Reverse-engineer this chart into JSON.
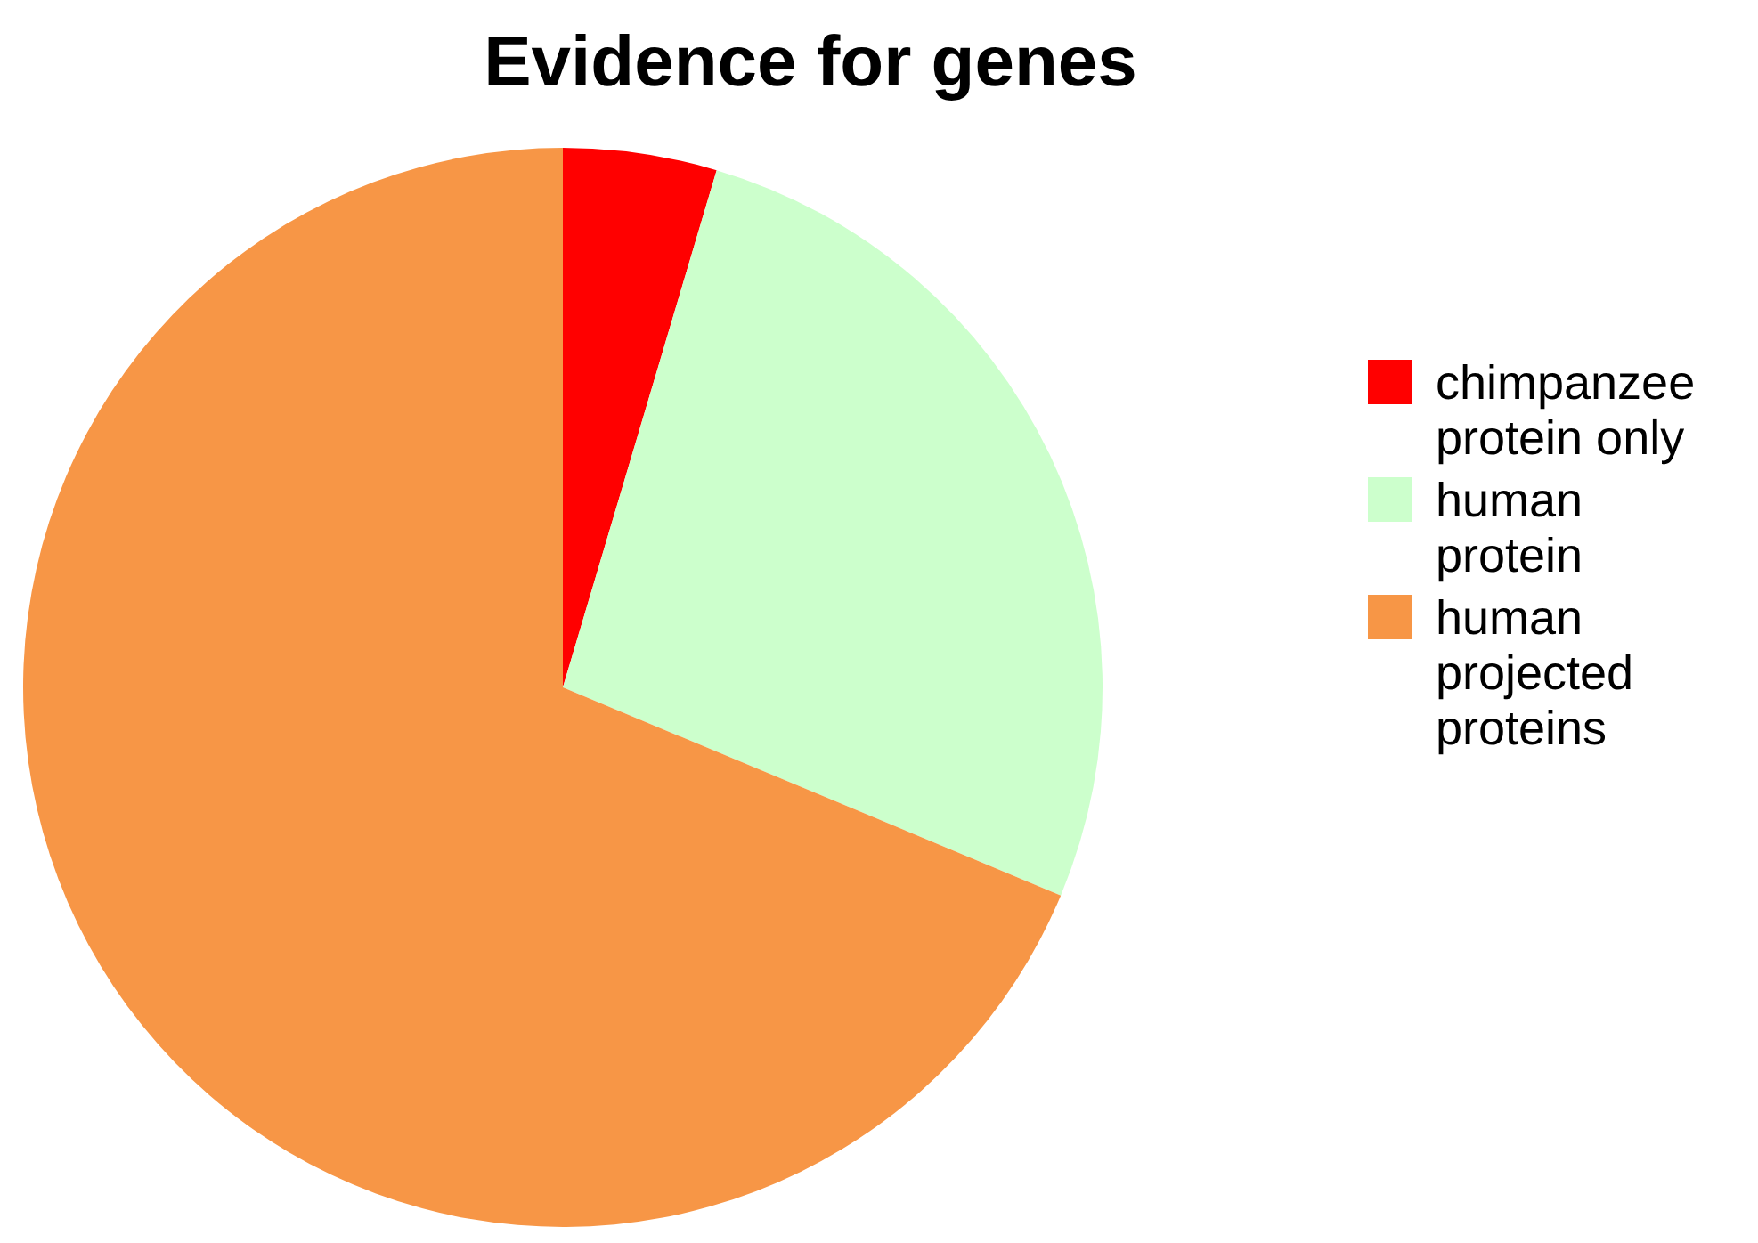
{
  "chart_data": {
    "type": "pie",
    "title": "Evidence for genes",
    "categories": [
      "chimpanzee protein only",
      "human protein",
      "human projected proteins"
    ],
    "values": [
      4.6,
      26.7,
      68.7
    ],
    "colors": [
      "#ff0000",
      "#ccffcc",
      "#f79646"
    ],
    "legend": "right"
  }
}
